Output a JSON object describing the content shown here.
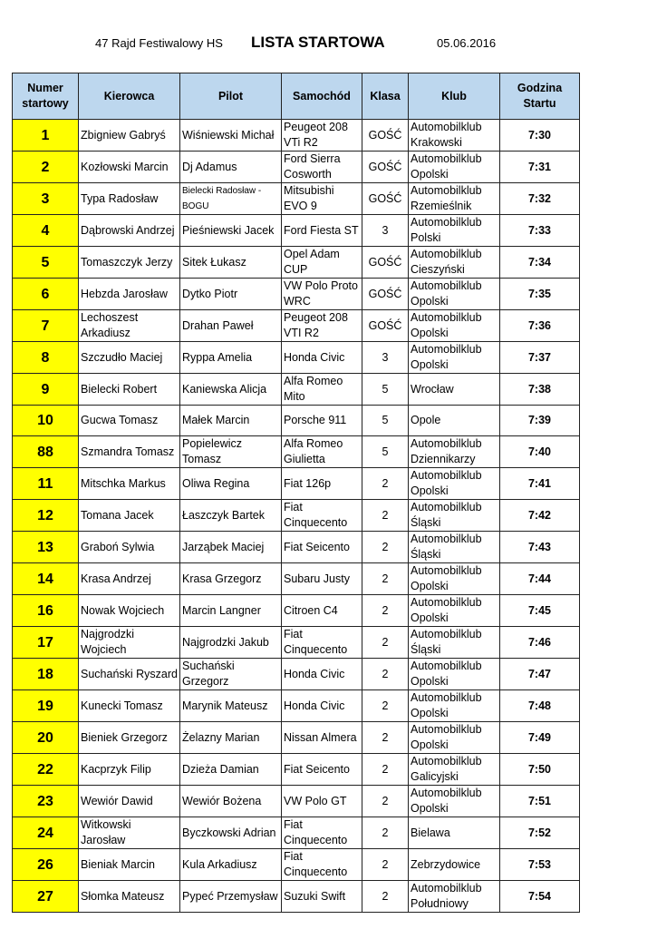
{
  "header": {
    "event": "47 Rajd Festiwalowy HS",
    "title": "LISTA STARTOWA",
    "date": "05.06.2016"
  },
  "columns": [
    "Numer startowy",
    "Kierowca",
    "Pilot",
    "Samochód",
    "Klasa",
    "Klub",
    "Godzina Startu"
  ],
  "colors": {
    "number_cell": "#ffff00",
    "header": "#bdd7ee"
  },
  "rows": [
    [
      "1",
      "Zbigniew Gabryś",
      "Wiśniewski Michał",
      "Peugeot 208 VTi R2",
      "GOŚĆ",
      "Automobilklub Krakowski",
      "7:30"
    ],
    [
      "2",
      "Kozłowski Marcin",
      "Dj Adamus",
      "Ford Sierra Cosworth",
      "GOŚĆ",
      "Automobilklub Opolski",
      "7:31"
    ],
    [
      "3",
      "Typa Radosław",
      "Bielecki Radosław - BOGU",
      "Mitsubishi EVO 9",
      "GOŚĆ",
      "Automobilklub Rzemieślnik",
      "7:32"
    ],
    [
      "4",
      "Dąbrowski Andrzej",
      "Pieśniewski Jacek",
      "Ford Fiesta ST",
      "3",
      "Automobilklub Polski",
      "7:33"
    ],
    [
      "5",
      "Tomaszczyk Jerzy",
      "Sitek Łukasz",
      "Opel Adam CUP",
      "GOŚĆ",
      "Automobilklub Cieszyński",
      "7:34"
    ],
    [
      "6",
      "Hebzda Jarosław",
      "Dytko Piotr",
      "VW Polo Proto WRC",
      "GOŚĆ",
      "Automobilklub Opolski",
      "7:35"
    ],
    [
      "7",
      "Lechoszest Arkadiusz",
      "Drahan Paweł",
      "Peugeot 208 VTI R2",
      "GOŚĆ",
      "Automobilklub Opolski",
      "7:36"
    ],
    [
      "8",
      "Szczudło Maciej",
      "Ryppa Amelia",
      "Honda Civic",
      "3",
      "Automobilklub Opolski",
      "7:37"
    ],
    [
      "9",
      "Bielecki Robert",
      "Kaniewska Alicja",
      "Alfa Romeo Mito",
      "5",
      "Wrocław",
      "7:38"
    ],
    [
      "10",
      "Gucwa Tomasz",
      "Małek Marcin",
      "Porsche 911",
      "5",
      "Opole",
      "7:39"
    ],
    [
      "88",
      "Szmandra Tomasz",
      "Popielewicz Tomasz",
      "Alfa Romeo Giulietta",
      "5",
      "Automobilklub Dziennikarzy",
      "7:40"
    ],
    [
      "11",
      "Mitschka Markus",
      "Oliwa Regina",
      "Fiat 126p",
      "2",
      "Automobilklub Opolski",
      "7:41"
    ],
    [
      "12",
      "Tomana Jacek",
      "Łaszczyk Bartek",
      "Fiat Cinquecento",
      "2",
      "Automobilklub Śląski",
      "7:42"
    ],
    [
      "13",
      "Graboń Sylwia",
      "Jarząbek Maciej",
      "Fiat Seicento",
      "2",
      "Automobilklub Śląski",
      "7:43"
    ],
    [
      "14",
      "Krasa Andrzej",
      "Krasa Grzegorz",
      "Subaru Justy",
      "2",
      "Automobilklub Opolski",
      "7:44"
    ],
    [
      "16",
      "Nowak Wojciech",
      "Marcin Langner",
      "Citroen C4",
      "2",
      "Automobilklub Opolski",
      "7:45"
    ],
    [
      "17",
      "Najgrodzki Wojciech",
      "Najgrodzki Jakub",
      "Fiat Cinquecento",
      "2",
      "Automobilklub Śląski",
      "7:46"
    ],
    [
      "18",
      "Suchański Ryszard",
      "Suchański Grzegorz",
      "Honda Civic",
      "2",
      "Automobilklub Opolski",
      "7:47"
    ],
    [
      "19",
      "Kunecki Tomasz",
      "Marynik Mateusz",
      "Honda Civic",
      "2",
      "Automobilklub Opolski",
      "7:48"
    ],
    [
      "20",
      "Bieniek Grzegorz",
      "Żelazny Marian",
      "Nissan Almera",
      "2",
      "Automobilklub Opolski",
      "7:49"
    ],
    [
      "22",
      "Kacprzyk Filip",
      "Dzieża Damian",
      "Fiat Seicento",
      "2",
      "Automobilklub Galicyjski",
      "7:50"
    ],
    [
      "23",
      "Wewiór Dawid",
      "Wewiór Bożena",
      "VW Polo GT",
      "2",
      "Automobilklub Opolski",
      "7:51"
    ],
    [
      "24",
      "Witkowski Jarosław",
      "Byczkowski Adrian",
      "Fiat Cinquecento",
      "2",
      "Bielawa",
      "7:52"
    ],
    [
      "26",
      "Bieniak Marcin",
      "Kula Arkadiusz",
      "Fiat Cinquecento",
      "2",
      "Zebrzydowice",
      "7:53"
    ],
    [
      "27",
      "Słomka Mateusz",
      "Pypeć Przemysław",
      "Suzuki Swift",
      "2",
      "Automobilklub Południowy",
      "7:54"
    ]
  ]
}
